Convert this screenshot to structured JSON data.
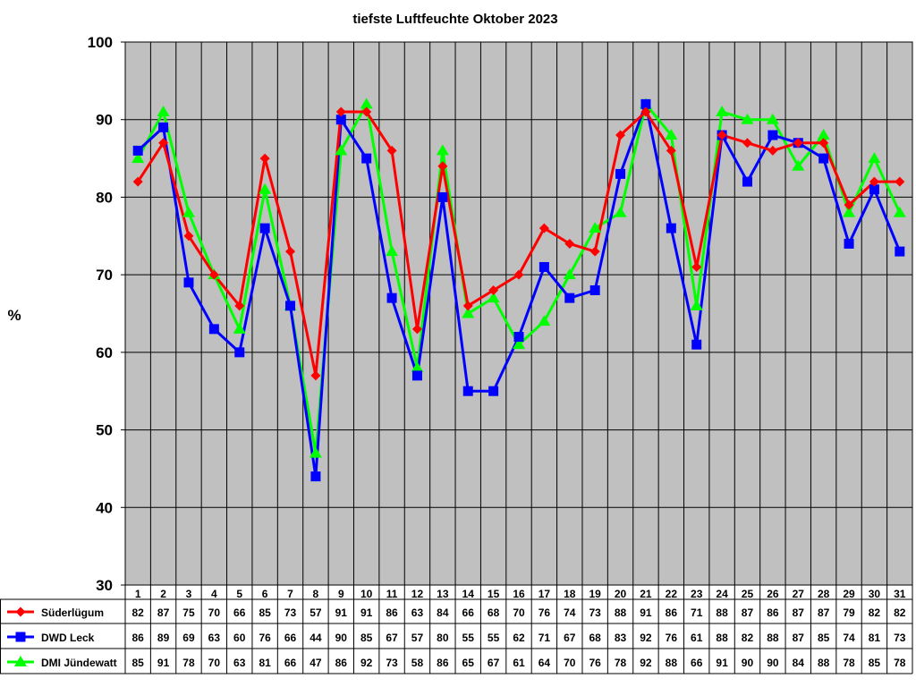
{
  "chart_data": {
    "type": "line",
    "title": "tiefste Luftfeuchte Oktober 2023",
    "ylabel": "%",
    "xlabel": "",
    "ylim": [
      30,
      100
    ],
    "yticks": [
      30,
      40,
      50,
      60,
      70,
      80,
      90,
      100
    ],
    "grid": true,
    "legend": "table-below",
    "plot_background": "#c0c0c0",
    "categories": [
      "1",
      "2",
      "3",
      "4",
      "5",
      "6",
      "7",
      "8",
      "9",
      "10",
      "11",
      "12",
      "13",
      "14",
      "15",
      "16",
      "17",
      "18",
      "19",
      "20",
      "21",
      "22",
      "23",
      "24",
      "25",
      "26",
      "27",
      "28",
      "29",
      "30",
      "31"
    ],
    "series": [
      {
        "name": "Süderlügum",
        "color": "#ff0000",
        "marker": "diamond",
        "values": [
          82,
          87,
          75,
          70,
          66,
          85,
          73,
          57,
          91,
          91,
          86,
          63,
          84,
          66,
          68,
          70,
          76,
          74,
          73,
          88,
          91,
          86,
          71,
          88,
          87,
          86,
          87,
          87,
          79,
          82,
          82
        ]
      },
      {
        "name": "DWD Leck",
        "color": "#0000ff",
        "marker": "square",
        "values": [
          86,
          89,
          69,
          63,
          60,
          76,
          66,
          44,
          90,
          85,
          67,
          57,
          80,
          55,
          55,
          62,
          71,
          67,
          68,
          83,
          92,
          76,
          61,
          88,
          82,
          88,
          87,
          85,
          74,
          81,
          73
        ]
      },
      {
        "name": "DMI Jündewatt",
        "color": "#00ff00",
        "marker": "triangle",
        "values": [
          85,
          91,
          78,
          70,
          63,
          81,
          66,
          47,
          86,
          92,
          73,
          58,
          86,
          65,
          67,
          61,
          64,
          70,
          76,
          78,
          92,
          88,
          66,
          91,
          90,
          90,
          84,
          88,
          78,
          85,
          78
        ]
      }
    ]
  }
}
